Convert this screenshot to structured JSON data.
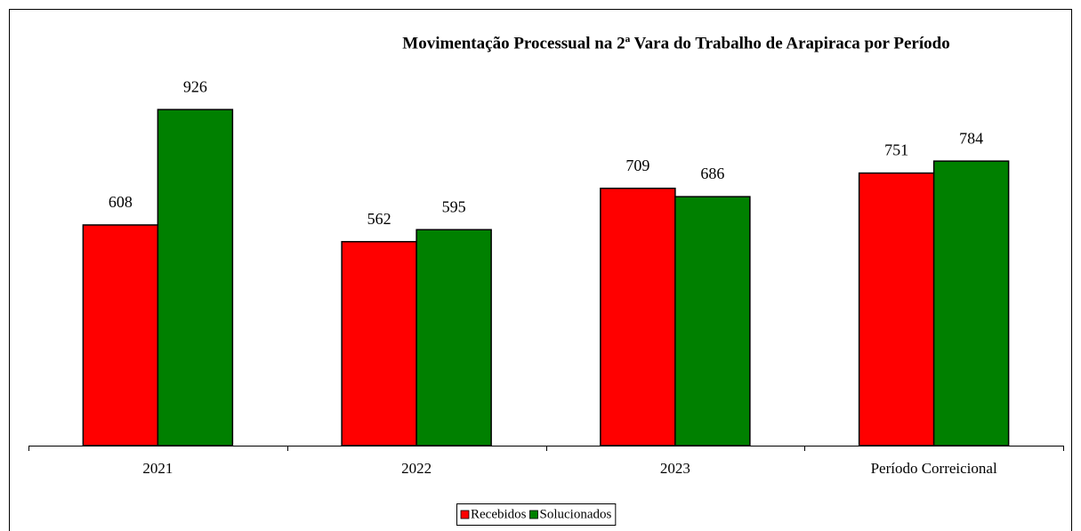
{
  "chart_data": {
    "type": "bar",
    "title": "Movimentação Processual na 2ª Vara do Trabalho de Arapiraca por Período",
    "categories": [
      "2021",
      "2022",
      "2023",
      "Período Correicional"
    ],
    "series": [
      {
        "name": "Recebidos",
        "color": "#ff0000",
        "values": [
          608,
          562,
          709,
          751
        ]
      },
      {
        "name": "Solucionados",
        "color": "#008000",
        "values": [
          926,
          595,
          686,
          784
        ]
      }
    ],
    "ylim": [
      0,
      1000
    ],
    "legend": "bottom"
  }
}
